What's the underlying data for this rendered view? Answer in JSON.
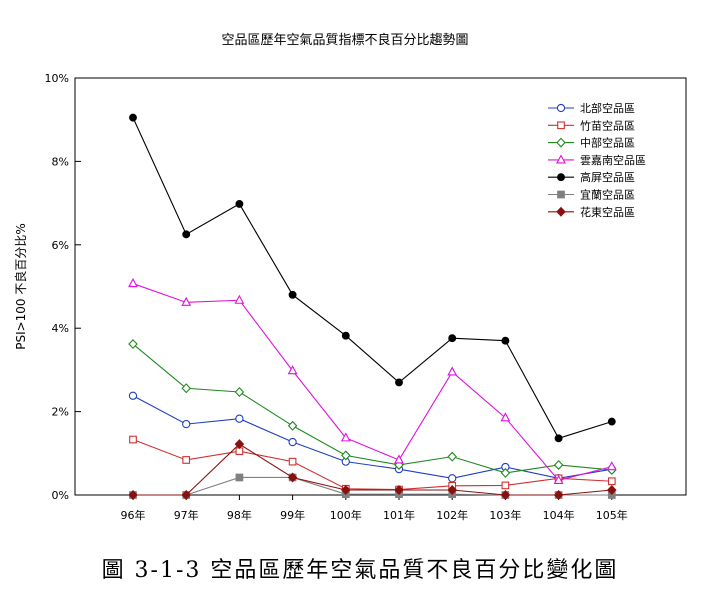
{
  "chart_data": {
    "type": "line",
    "title": "空品區歷年空氣品質指標不良百分比趨勢圖",
    "xlabel": "",
    "ylabel": "PSI>100 不良百分比%",
    "categories": [
      "96年",
      "97年",
      "98年",
      "99年",
      "100年",
      "101年",
      "102年",
      "103年",
      "104年",
      "105年"
    ],
    "yticks": [
      "0%",
      "2%",
      "4%",
      "6%",
      "8%",
      "10%"
    ],
    "ylim": [
      0,
      10
    ],
    "grid": false,
    "legend_position": "top-right",
    "series": [
      {
        "name": "北部空品區",
        "color": "#1f3fbf",
        "marker": "circle-open",
        "values": [
          2.38,
          1.7,
          1.83,
          1.27,
          0.8,
          0.62,
          0.4,
          0.67,
          0.4,
          0.62
        ]
      },
      {
        "name": "竹苗空品區",
        "color": "#d03030",
        "marker": "square-open",
        "values": [
          1.33,
          0.84,
          1.05,
          0.8,
          0.15,
          0.13,
          0.22,
          0.23,
          0.4,
          0.33
        ]
      },
      {
        "name": "中部空品區",
        "color": "#1e8a1e",
        "marker": "diamond-open",
        "values": [
          3.62,
          2.56,
          2.47,
          1.66,
          0.95,
          0.72,
          0.92,
          0.53,
          0.72,
          0.6
        ]
      },
      {
        "name": "雲嘉南空品區",
        "color": "#e010e0",
        "marker": "triangle-open",
        "values": [
          5.07,
          4.62,
          4.67,
          2.98,
          1.37,
          0.84,
          2.95,
          1.85,
          0.35,
          0.68
        ]
      },
      {
        "name": "高屏空品區",
        "color": "#000000",
        "marker": "circle-filled",
        "values": [
          9.05,
          6.25,
          6.98,
          4.8,
          3.82,
          2.7,
          3.76,
          3.7,
          1.36,
          1.76
        ]
      },
      {
        "name": "宜蘭空品區",
        "color": "#808080",
        "marker": "square-filled",
        "values": [
          0,
          0,
          0.42,
          0.42,
          0.02,
          0.02,
          0.02,
          0,
          0,
          0
        ]
      },
      {
        "name": "花東空品區",
        "color": "#8b1010",
        "marker": "diamond-filled",
        "values": [
          0,
          0,
          1.22,
          0.42,
          0.12,
          0.12,
          0.12,
          0,
          0,
          0.12
        ]
      }
    ]
  },
  "caption": "圖 3-1-3 空品區歷年空氣品質不良百分比變化圖"
}
